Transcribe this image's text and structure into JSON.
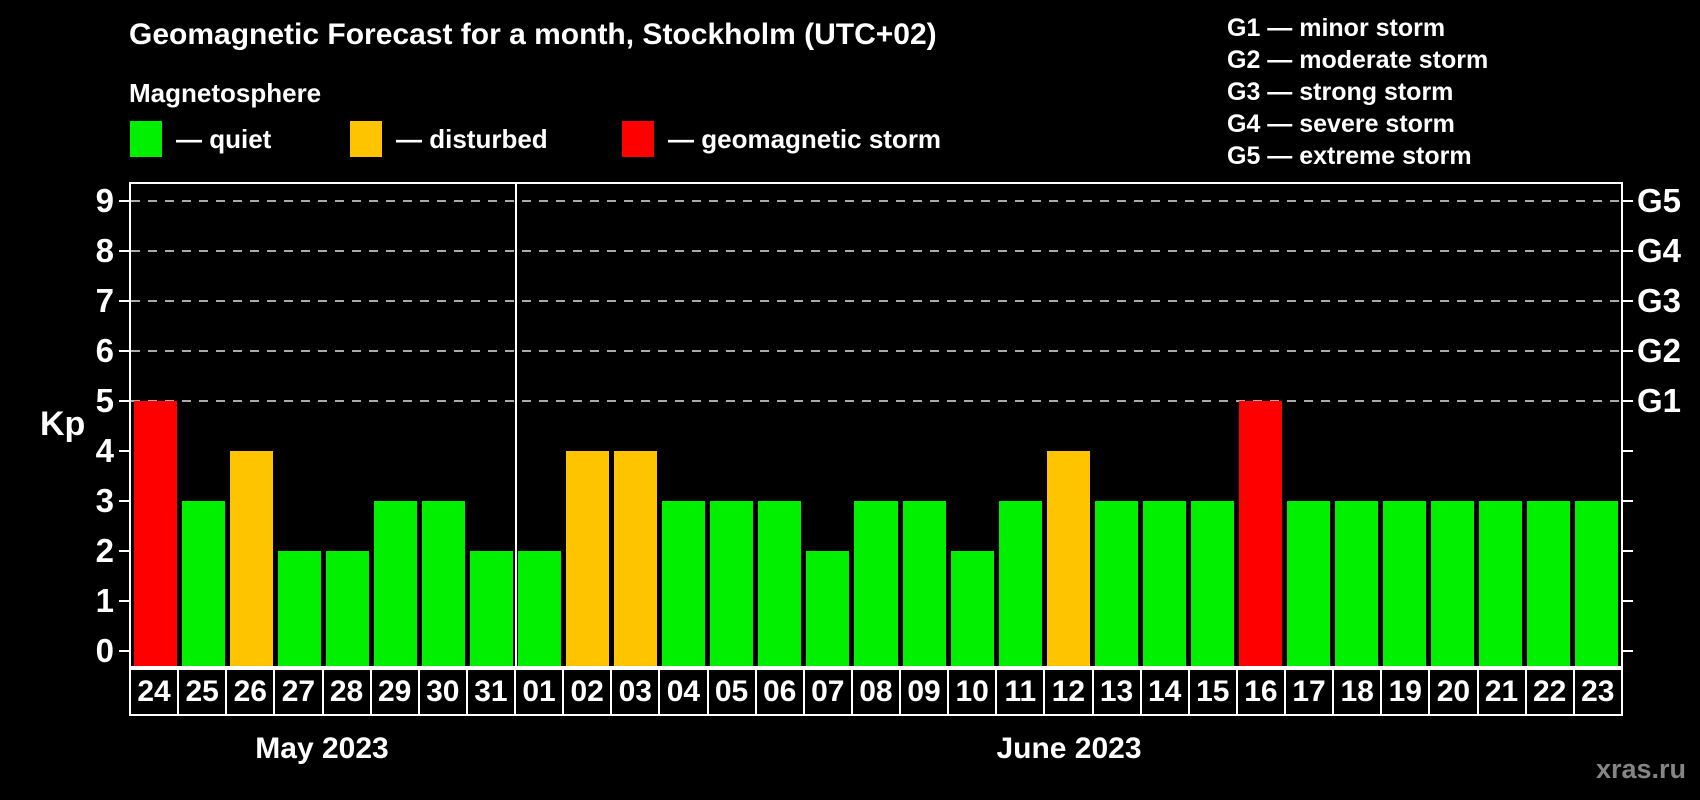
{
  "header": {
    "title": "Geomagnetic Forecast for a month, Stockholm (UTC+02)",
    "subtitle": "Magnetosphere"
  },
  "legend": {
    "items": [
      {
        "key": "quiet",
        "label": "— quiet",
        "color": "#00f000"
      },
      {
        "key": "disturbed",
        "label": "— disturbed",
        "color": "#ffc400"
      },
      {
        "key": "storm",
        "label": "— geomagnetic storm",
        "color": "#ff0000"
      }
    ]
  },
  "g_legend": {
    "lines": [
      "G1 — minor storm",
      "G2 — moderate storm",
      "G3 — strong storm",
      "G4 — severe storm",
      "G5 — extreme storm"
    ]
  },
  "axes": {
    "kp_label": "Kp",
    "y_ticks": [
      "0",
      "1",
      "2",
      "3",
      "4",
      "5",
      "6",
      "7",
      "8",
      "9"
    ],
    "right_labels": [
      {
        "text": "G5",
        "kp": 9
      },
      {
        "text": "G4",
        "kp": 8
      },
      {
        "text": "G3",
        "kp": 7
      },
      {
        "text": "G2",
        "kp": 6
      },
      {
        "text": "G1",
        "kp": 5
      }
    ]
  },
  "footer": {
    "months": [
      {
        "label": "May 2023",
        "days": 8
      },
      {
        "label": "June 2023",
        "days": 23
      }
    ],
    "watermark": "xras.ru"
  },
  "colors": {
    "quiet": "#00f000",
    "disturbed": "#ffc400",
    "storm": "#ff0000",
    "grid": "#aaaaaa",
    "axis": "#ffffff",
    "background": "#000000"
  },
  "chart_data": {
    "type": "bar",
    "title": "Geomagnetic Forecast for a month, Stockholm (UTC+02)",
    "subtitle": "Magnetosphere",
    "xlabel": "",
    "ylabel": "Kp",
    "ylim": [
      0,
      9
    ],
    "grid": "dashed horizontal at Kp 5-9 (G1-G5 storm levels)",
    "grid_kp_levels": [
      5,
      6,
      7,
      8,
      9
    ],
    "legend_position": "top",
    "categories": [
      "24",
      "25",
      "26",
      "27",
      "28",
      "29",
      "30",
      "31",
      "01",
      "02",
      "03",
      "04",
      "05",
      "06",
      "07",
      "08",
      "09",
      "10",
      "11",
      "12",
      "13",
      "14",
      "15",
      "16",
      "17",
      "18",
      "19",
      "20",
      "21",
      "22",
      "23"
    ],
    "values": [
      5,
      3,
      4,
      2,
      2,
      3,
      3,
      2,
      2,
      4,
      4,
      3,
      3,
      3,
      2,
      3,
      3,
      2,
      3,
      4,
      3,
      3,
      3,
      5,
      3,
      3,
      3,
      3,
      3,
      3,
      3
    ],
    "statuses": [
      "storm",
      "quiet",
      "disturbed",
      "quiet",
      "quiet",
      "quiet",
      "quiet",
      "quiet",
      "quiet",
      "disturbed",
      "disturbed",
      "quiet",
      "quiet",
      "quiet",
      "quiet",
      "quiet",
      "quiet",
      "quiet",
      "quiet",
      "disturbed",
      "quiet",
      "quiet",
      "quiet",
      "storm",
      "quiet",
      "quiet",
      "quiet",
      "quiet",
      "quiet",
      "quiet",
      "quiet"
    ]
  }
}
